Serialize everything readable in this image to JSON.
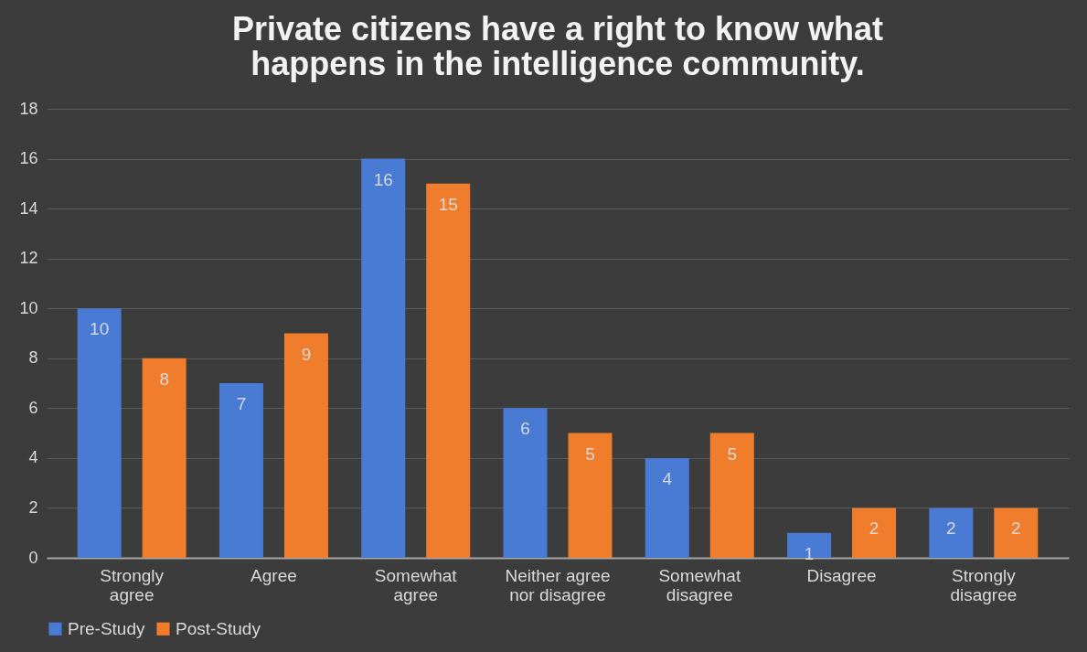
{
  "chart_data": {
    "type": "bar",
    "title": "Private citizens have a right to know what happens in the intelligence community.",
    "categories": [
      "Strongly agree",
      "Agree",
      "Somewhat agree",
      "Neither agree nor disagree",
      "Somewhat disagree",
      "Disagree",
      "Strongly disagree"
    ],
    "series": [
      {
        "name": "Pre-Study",
        "color": "#4a7bd4",
        "values": [
          10,
          7,
          16,
          6,
          4,
          1,
          2
        ]
      },
      {
        "name": "Post-Study",
        "color": "#f07d2c",
        "values": [
          8,
          9,
          15,
          5,
          5,
          2,
          2
        ]
      }
    ],
    "ylim": [
      0,
      18
    ],
    "yticks": [
      0,
      2,
      4,
      6,
      8,
      10,
      12,
      14,
      16,
      18
    ],
    "grid": "y",
    "legend": "bottom",
    "data_labels": true
  }
}
